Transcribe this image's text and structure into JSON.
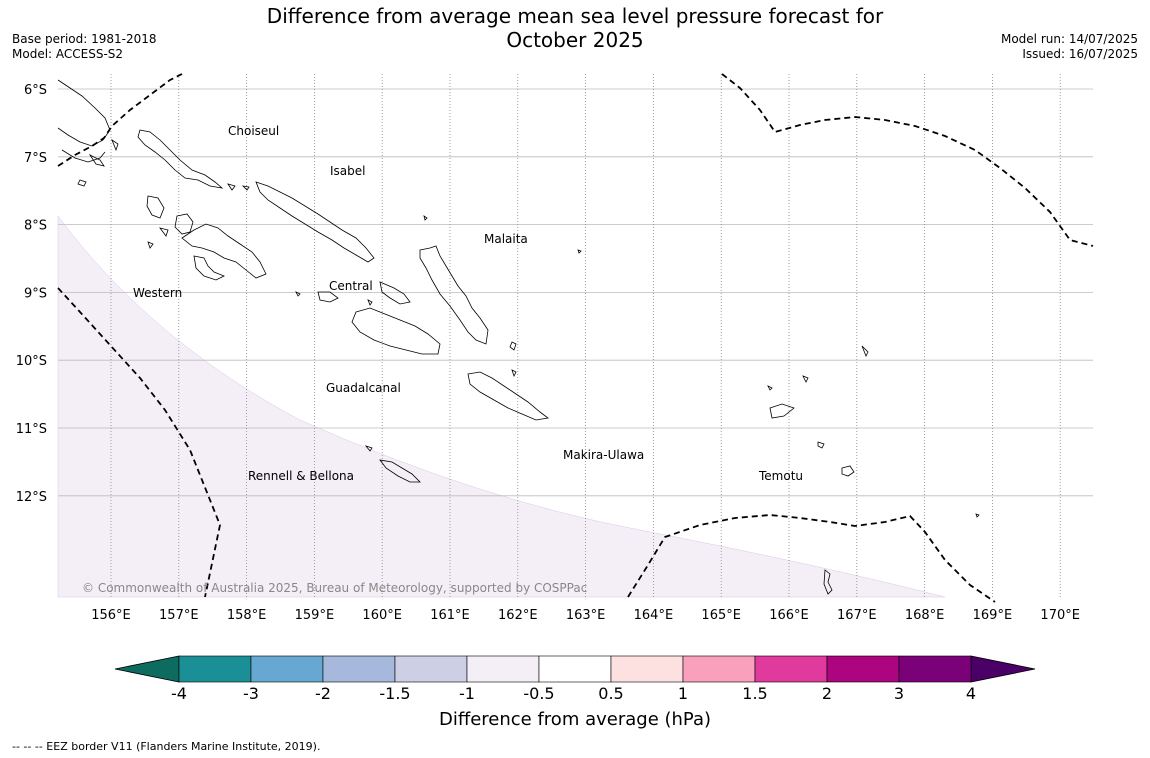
{
  "title_line1": "Difference from average mean sea level pressure forecast for",
  "title_line2": "October 2025",
  "base_period": "Base period: 1981-2018",
  "model": "Model: ACCESS-S2",
  "model_run": "Model run: 14/07/2025",
  "issued": "Issued: 16/07/2025",
  "lat_labels": [
    "6°S",
    "7°S",
    "8°S",
    "9°S",
    "10°S",
    "11°S",
    "12°S"
  ],
  "lon_labels": [
    "156°E",
    "157°E",
    "158°E",
    "159°E",
    "160°E",
    "161°E",
    "162°E",
    "163°E",
    "164°E",
    "165°E",
    "166°E",
    "167°E",
    "168°E",
    "169°E",
    "170°E"
  ],
  "places": [
    "Choiseul",
    "Isabel",
    "Malaita",
    "Western",
    "Central",
    "Guadalcanal",
    "Makira-Ulawa",
    "Rennell & Bellona",
    "Temotu"
  ],
  "copyright": "© Commonwealth of Australia 2025, Bureau of Meteorology, supported by COSPPac",
  "colorbar": {
    "ticks": [
      "-4",
      "-3",
      "-2",
      "-1.5",
      "-1",
      "-0.5",
      "0.5",
      "1",
      "1.5",
      "2",
      "3",
      "4"
    ],
    "colors": [
      "#1a8f95",
      "#66a8d2",
      "#a6b9dc",
      "#cdcfe5",
      "#f4eef7",
      "#ffffff",
      "#fde0e0",
      "#f9a0bd",
      "#df3a9c",
      "#ad047f",
      "#7a0177"
    ],
    "under_color": "#0d6b60",
    "over_color": "#4a0066",
    "label": "Difference from average (hPa)"
  },
  "footer": "--  --  -- EEZ border V11 (Flanders Marine Institute, 2019)."
}
